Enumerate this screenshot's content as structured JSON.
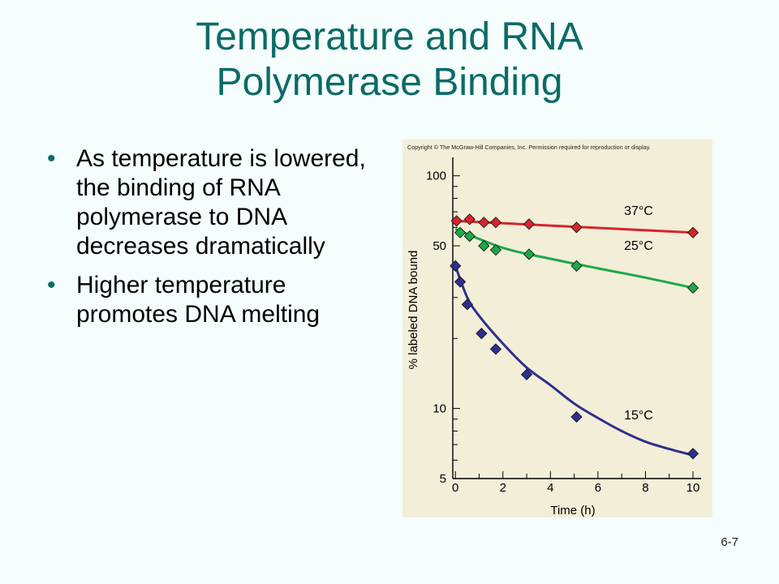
{
  "slide": {
    "title_line1": "Temperature and RNA",
    "title_line2": "Polymerase Binding",
    "bullets": [
      "As temperature is lowered, the binding of RNA polymerase to DNA decreases dramatically",
      "Higher temperature promotes DNA melting"
    ],
    "page_number": "6-7"
  },
  "chart_data": {
    "type": "line",
    "copyright": "Copyright © The McGraw-Hill Companies, Inc. Permission required for reproduction or display.",
    "xlabel": "Time (h)",
    "ylabel": "% labeled DNA bound",
    "xlim": [
      0,
      10
    ],
    "ylim": [
      5,
      120
    ],
    "yscale": "log",
    "x_ticks": [
      0,
      2,
      4,
      6,
      8,
      10
    ],
    "y_tick_labels": [
      5,
      10,
      50,
      100
    ],
    "background_color": "#f2eed8",
    "series": [
      {
        "name": "37°C",
        "color": "#d8242c",
        "points": [
          [
            0.05,
            64
          ],
          [
            0.6,
            65
          ],
          [
            1.2,
            63
          ],
          [
            1.7,
            63
          ],
          [
            3.1,
            62
          ],
          [
            5.1,
            60
          ],
          [
            10,
            57
          ]
        ],
        "fit": [
          [
            0,
            64
          ],
          [
            10,
            57
          ]
        ]
      },
      {
        "name": "25°C",
        "color": "#1ea84a",
        "points": [
          [
            0.2,
            57
          ],
          [
            0.6,
            55
          ],
          [
            1.2,
            50
          ],
          [
            1.7,
            48
          ],
          [
            3.1,
            46
          ],
          [
            5.1,
            41
          ],
          [
            10,
            33
          ]
        ],
        "fit": [
          [
            0,
            59
          ],
          [
            2,
            49
          ],
          [
            4,
            44
          ],
          [
            6,
            40
          ],
          [
            8,
            36.5
          ],
          [
            10,
            33
          ]
        ]
      },
      {
        "name": "15°C",
        "color": "#2d2f8e",
        "points": [
          [
            0,
            41
          ],
          [
            0.2,
            35
          ],
          [
            0.5,
            28
          ],
          [
            1.1,
            21
          ],
          [
            1.7,
            18
          ],
          [
            3,
            14
          ],
          [
            5.1,
            9.2
          ],
          [
            10,
            6.4
          ]
        ],
        "fit": [
          [
            0,
            41
          ],
          [
            0.5,
            30
          ],
          [
            1,
            25
          ],
          [
            2,
            19
          ],
          [
            3,
            15
          ],
          [
            4,
            12.6
          ],
          [
            5,
            10.5
          ],
          [
            6,
            9.1
          ],
          [
            7,
            8.0
          ],
          [
            8,
            7.2
          ],
          [
            9,
            6.7
          ],
          [
            10,
            6.3
          ]
        ]
      }
    ],
    "series_label_positions": [
      [
        7.1,
        68
      ],
      [
        7.1,
        48
      ],
      [
        7.1,
        9
      ]
    ]
  }
}
